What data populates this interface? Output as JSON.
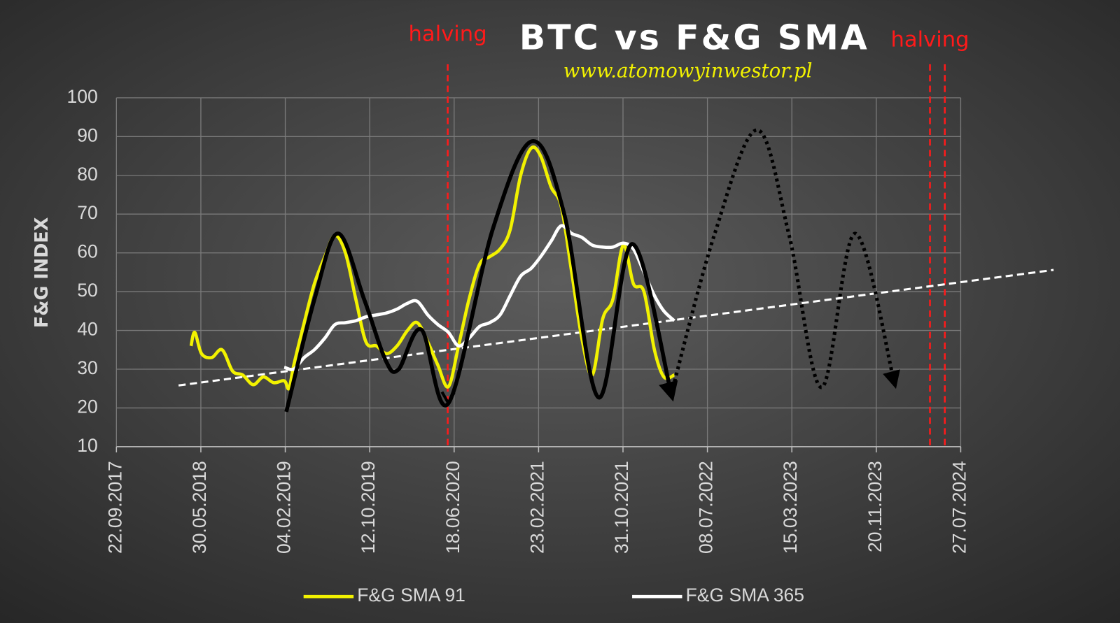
{
  "chart_data": {
    "type": "line",
    "title": "BTC vs F&G SMA",
    "subtitle": "www.atomowyinwestor.pl",
    "y_label": "F&G INDEX",
    "xlim": [
      "2017-09-22",
      "2024-07-27"
    ],
    "xticks": [
      {
        "value": "2017-09-22",
        "label": "22.09.2017"
      },
      {
        "value": "2018-05-30",
        "label": "30.05.2018"
      },
      {
        "value": "2019-02-04",
        "label": "04.02.2019"
      },
      {
        "value": "2019-10-12",
        "label": "12.10.2019"
      },
      {
        "value": "2020-06-18",
        "label": "18.06.2020"
      },
      {
        "value": "2021-02-23",
        "label": "23.02.2021"
      },
      {
        "value": "2021-10-31",
        "label": "31.10.2021"
      },
      {
        "value": "2022-07-08",
        "label": "08.07.2022"
      },
      {
        "value": "2023-03-15",
        "label": "15.03.2023"
      },
      {
        "value": "2023-11-20",
        "label": "20.11.2023"
      },
      {
        "value": "2024-07-27",
        "label": "27.07.2024"
      }
    ],
    "ylim": [
      10,
      100
    ],
    "yticks": [
      10,
      20,
      30,
      40,
      50,
      60,
      70,
      80,
      90,
      100
    ],
    "grid": true,
    "legend": "bottom",
    "series": [
      {
        "name": "F&G SMA 91",
        "color": "#f2f200",
        "x": [
          "2018-05-01",
          "2018-05-12",
          "2018-06-01",
          "2018-07-01",
          "2018-08-01",
          "2018-09-01",
          "2018-10-01",
          "2018-11-01",
          "2018-12-01",
          "2019-01-01",
          "2019-02-01",
          "2019-02-15",
          "2019-03-01",
          "2019-04-01",
          "2019-05-01",
          "2019-06-01",
          "2019-07-01",
          "2019-08-01",
          "2019-09-01",
          "2019-10-01",
          "2019-11-01",
          "2019-12-01",
          "2020-01-01",
          "2020-02-01",
          "2020-03-01",
          "2020-04-01",
          "2020-05-01",
          "2020-06-01",
          "2020-07-01",
          "2020-08-01",
          "2020-09-01",
          "2020-10-01",
          "2020-11-01",
          "2020-12-01",
          "2021-01-01",
          "2021-02-01",
          "2021-03-01",
          "2021-04-01",
          "2021-05-01",
          "2021-06-01",
          "2021-07-01",
          "2021-08-01",
          "2021-09-01",
          "2021-10-01",
          "2021-11-01",
          "2021-12-01",
          "2022-01-01",
          "2022-02-01",
          "2022-03-01",
          "2022-04-01"
        ],
        "values": [
          36,
          39.5,
          34,
          33,
          35,
          29.5,
          28.5,
          26,
          28,
          26.5,
          27,
          25,
          31,
          42,
          52,
          59,
          64.5,
          60,
          48,
          37,
          36,
          34,
          36,
          40,
          42,
          37,
          31,
          25.5,
          36,
          48,
          57,
          59,
          61,
          66,
          80,
          87,
          85,
          77,
          72,
          55,
          38,
          28.5,
          43,
          48,
          62,
          52,
          50,
          35,
          28,
          28.5
        ]
      },
      {
        "name": "F&G SMA 365",
        "color": "#ffffff",
        "x": [
          "2019-02-01",
          "2019-03-01",
          "2019-04-01",
          "2019-05-01",
          "2019-06-01",
          "2019-07-01",
          "2019-08-01",
          "2019-09-01",
          "2019-10-01",
          "2019-11-01",
          "2019-12-01",
          "2020-01-01",
          "2020-02-01",
          "2020-03-01",
          "2020-04-01",
          "2020-05-01",
          "2020-06-01",
          "2020-07-01",
          "2020-08-01",
          "2020-09-01",
          "2020-10-01",
          "2020-11-01",
          "2020-12-01",
          "2021-01-01",
          "2021-02-01",
          "2021-03-01",
          "2021-04-01",
          "2021-05-01",
          "2021-06-01",
          "2021-07-01",
          "2021-08-01",
          "2021-09-01",
          "2021-10-01",
          "2021-11-01",
          "2021-12-01",
          "2022-01-01",
          "2022-02-01",
          "2022-03-01",
          "2022-04-01"
        ],
        "values": [
          30.5,
          30,
          33,
          35,
          38,
          41.5,
          42,
          42.5,
          43.5,
          44,
          44.5,
          45.5,
          47,
          47.5,
          44,
          41.5,
          39.5,
          36,
          38,
          41,
          42,
          44,
          49,
          54,
          56,
          59,
          63,
          67,
          65,
          64,
          62,
          61.5,
          61.5,
          62.5,
          61,
          55,
          49,
          45,
          42.5
        ]
      }
    ],
    "trend_line": {
      "color": "#ffffff",
      "x": [
        "2018-03-25",
        "2025-04-28"
      ],
      "values": [
        25.8,
        55.6
      ]
    },
    "sketch": [
      {
        "style": "solid",
        "color": "#000000",
        "x": [
          "2019-02-07",
          "2019-05-01",
          "2019-07-10",
          "2019-09-26",
          "2019-11-28",
          "2020-01-05",
          "2020-03-13",
          "2020-06-01",
          "2020-10-11",
          "2021-02-04",
          "2021-05-10",
          "2021-08-20",
          "2021-11-27",
          "2022-03-23"
        ],
        "values": [
          19.0,
          47.9,
          65.0,
          47.9,
          32.3,
          29.9,
          40.2,
          21.2,
          66.3,
          88.8,
          70.0,
          22.7,
          62.3,
          23.6
        ]
      },
      {
        "style": "dotted",
        "color": "#000000",
        "x": [
          "2022-03-23",
          "2022-07-28",
          "2022-12-02",
          "2023-03-07",
          "2023-06-11",
          "2023-09-18",
          "2024-01-12"
        ],
        "values": [
          23.6,
          64.5,
          91.7,
          64.5,
          25.3,
          65.0,
          26.7
        ]
      }
    ],
    "vlines": [
      {
        "x": "2020-05-30",
        "label": "halving",
        "color": "#ff1a1a"
      },
      {
        "x": "2024-04-27",
        "label": "halving",
        "color": "#ff1a1a"
      },
      {
        "x": "2024-06-10",
        "color": "#ff1a1a"
      }
    ]
  }
}
